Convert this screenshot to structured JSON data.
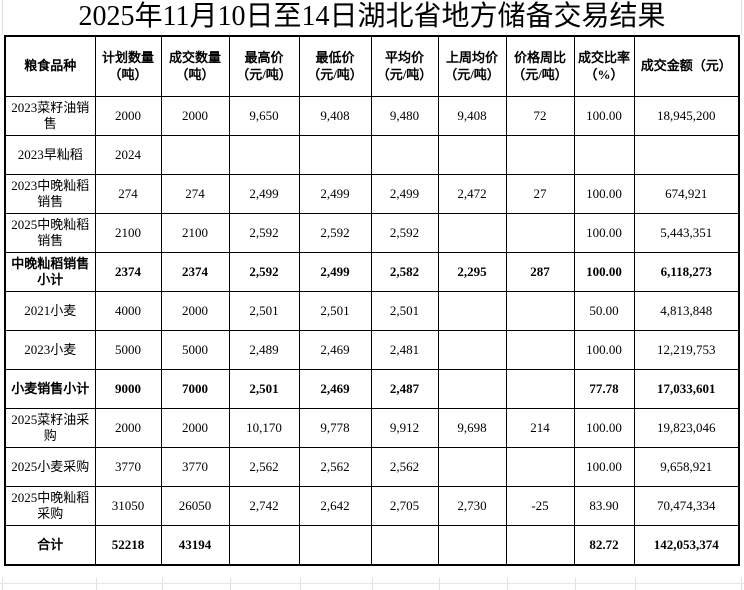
{
  "title": "2025年11月10日至14日湖北省地方储备交易结果",
  "table": {
    "columns": [
      {
        "label": "粮食品种",
        "unit": ""
      },
      {
        "label": "计划数量",
        "unit": "（吨）"
      },
      {
        "label": "成交数量",
        "unit": "（吨）"
      },
      {
        "label": "最高价",
        "unit": "（元/吨）"
      },
      {
        "label": "最低价",
        "unit": "（元/吨）"
      },
      {
        "label": "平均价",
        "unit": "（元/吨）"
      },
      {
        "label": "上周均价",
        "unit": "（元/吨）"
      },
      {
        "label": "价格周比",
        "unit": "（元/吨）"
      },
      {
        "label": "成交比率",
        "unit": "（%）"
      },
      {
        "label": "成交金额（元）",
        "unit": ""
      }
    ],
    "rows": [
      {
        "bold": false,
        "cells": [
          "2023菜籽油销售",
          "2000",
          "2000",
          "9,650",
          "9,408",
          "9,480",
          "9,408",
          "72",
          "100.00",
          "18,945,200"
        ]
      },
      {
        "bold": false,
        "cells": [
          "2023早籼稻",
          "2024",
          "",
          "",
          "",
          "",
          "",
          "",
          "",
          ""
        ]
      },
      {
        "bold": false,
        "cells": [
          "2023中晚籼稻销售",
          "274",
          "274",
          "2,499",
          "2,499",
          "2,499",
          "2,472",
          "27",
          "100.00",
          "674,921"
        ]
      },
      {
        "bold": false,
        "cells": [
          "2025中晚籼稻销售",
          "2100",
          "2100",
          "2,592",
          "2,592",
          "2,592",
          "",
          "",
          "100.00",
          "5,443,351"
        ]
      },
      {
        "bold": true,
        "cells": [
          "中晚籼稻销售小计",
          "2374",
          "2374",
          "2,592",
          "2,499",
          "2,582",
          "2,295",
          "287",
          "100.00",
          "6,118,273"
        ]
      },
      {
        "bold": false,
        "cells": [
          "2021小麦",
          "4000",
          "2000",
          "2,501",
          "2,501",
          "2,501",
          "",
          "",
          "50.00",
          "4,813,848"
        ]
      },
      {
        "bold": false,
        "cells": [
          "2023小麦",
          "5000",
          "5000",
          "2,489",
          "2,469",
          "2,481",
          "",
          "",
          "100.00",
          "12,219,753"
        ]
      },
      {
        "bold": true,
        "cells": [
          "小麦销售小计",
          "9000",
          "7000",
          "2,501",
          "2,469",
          "2,487",
          "",
          "",
          "77.78",
          "17,033,601"
        ]
      },
      {
        "bold": false,
        "cells": [
          "2025菜籽油采购",
          "2000",
          "2000",
          "10,170",
          "9,778",
          "9,912",
          "9,698",
          "214",
          "100.00",
          "19,823,046"
        ]
      },
      {
        "bold": false,
        "cells": [
          "2025小麦采购",
          "3770",
          "3770",
          "2,562",
          "2,562",
          "2,562",
          "",
          "",
          "100.00",
          "9,658,921"
        ]
      },
      {
        "bold": false,
        "cells": [
          "2025中晚籼稻采购",
          "31050",
          "26050",
          "2,742",
          "2,642",
          "2,705",
          "2,730",
          "-25",
          "83.90",
          "70,474,334"
        ]
      },
      {
        "bold": true,
        "cells": [
          "合计",
          "52218",
          "43194",
          "",
          "",
          "",
          "",
          "",
          "82.72",
          "142,053,374"
        ]
      }
    ]
  },
  "colors": {
    "border": "#000000",
    "text": "#000000",
    "background": "#ffffff",
    "faint_gridline": "#e0e0e0"
  }
}
